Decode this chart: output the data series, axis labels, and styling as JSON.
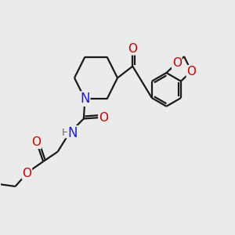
{
  "background_color": "#ebebeb",
  "atom_colors": {
    "C": "#000000",
    "N": "#1a1aee",
    "O": "#cc0000",
    "H": "#666666"
  },
  "bond_color": "#1a1a1a",
  "bond_width": 1.6,
  "font_size_atom": 10,
  "fig_size": [
    3.0,
    3.0
  ],
  "dpi": 100
}
